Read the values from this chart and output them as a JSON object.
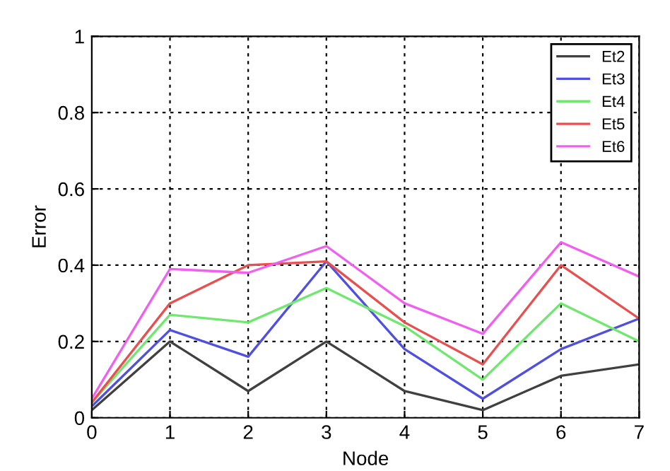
{
  "chart_data": {
    "type": "line",
    "xlabel": "Node",
    "ylabel": "Error",
    "x": [
      0,
      1,
      2,
      3,
      4,
      5,
      6,
      7
    ],
    "series": [
      {
        "name": "Et2",
        "color": "#404040",
        "values": [
          0.02,
          0.2,
          0.07,
          0.2,
          0.07,
          0.02,
          0.11,
          0.14
        ]
      },
      {
        "name": "Et3",
        "color": "#5050e0",
        "values": [
          0.03,
          0.23,
          0.16,
          0.41,
          0.18,
          0.05,
          0.18,
          0.26
        ]
      },
      {
        "name": "Et4",
        "color": "#70e870",
        "values": [
          0.04,
          0.27,
          0.25,
          0.34,
          0.24,
          0.1,
          0.3,
          0.2
        ]
      },
      {
        "name": "Et5",
        "color": "#e85050",
        "values": [
          0.04,
          0.3,
          0.4,
          0.41,
          0.25,
          0.14,
          0.4,
          0.26
        ]
      },
      {
        "name": "Et6",
        "color": "#f060f0",
        "values": [
          0.05,
          0.39,
          0.38,
          0.45,
          0.3,
          0.22,
          0.46,
          0.37
        ]
      }
    ],
    "xlim": [
      0,
      7
    ],
    "ylim": [
      0,
      1
    ],
    "xticks": [
      0,
      1,
      2,
      3,
      4,
      5,
      6,
      7
    ],
    "yticks": [
      0,
      0.2,
      0.4,
      0.6,
      0.8,
      1
    ],
    "grid": true,
    "legend": "top right",
    "line_style": "solid",
    "marker": "none"
  }
}
